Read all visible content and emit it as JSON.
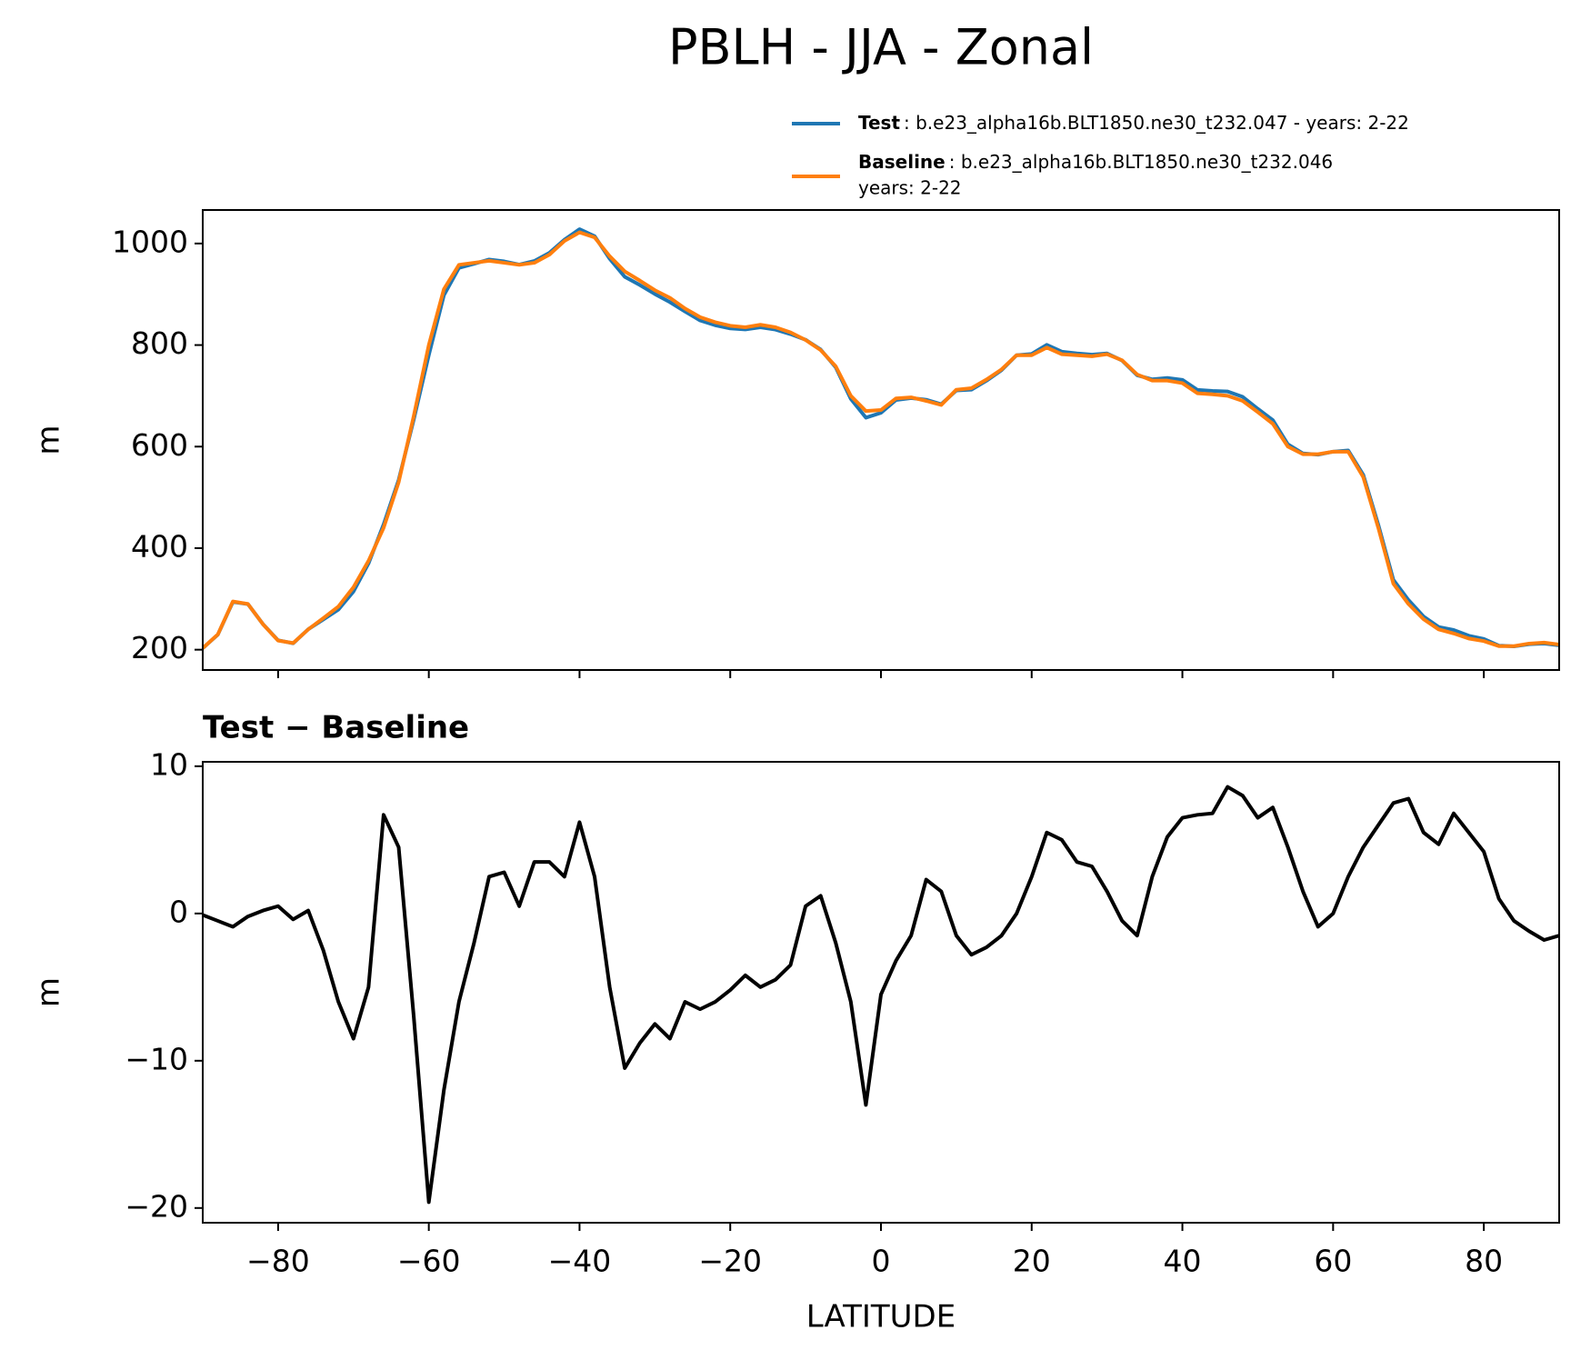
{
  "chart_data": [
    {
      "type": "line",
      "title": "PBLH - JJA - Zonal",
      "ylabel": "m",
      "x": [
        -90,
        -88,
        -86,
        -84,
        -82,
        -80,
        -78,
        -76,
        -74,
        -72,
        -70,
        -68,
        -66,
        -64,
        -62,
        -60,
        -58,
        -56,
        -54,
        -52,
        -50,
        -48,
        -46,
        -44,
        -42,
        -40,
        -38,
        -36,
        -34,
        -32,
        -30,
        -28,
        -26,
        -24,
        -22,
        -20,
        -18,
        -16,
        -14,
        -12,
        -10,
        -8,
        -6,
        -4,
        -2,
        0,
        2,
        4,
        6,
        8,
        10,
        12,
        14,
        16,
        18,
        20,
        22,
        24,
        26,
        28,
        30,
        32,
        34,
        36,
        38,
        40,
        42,
        44,
        46,
        48,
        50,
        52,
        54,
        56,
        58,
        60,
        62,
        64,
        66,
        68,
        70,
        72,
        74,
        76,
        78,
        80,
        82,
        84,
        86,
        88,
        90
      ],
      "series": [
        {
          "name": "Test",
          "description": [
            ": b.e23_alpha16b.BLT1850.ne30_t232.047 - years: 2-22"
          ],
          "color": "#1f77b4",
          "values": [
            202.9,
            229.5,
            294.1,
            289.8,
            250.2,
            218.5,
            212.6,
            240.2,
            259.5,
            279,
            314.5,
            370,
            446.7,
            534.5,
            653,
            780.4,
            898,
            952,
            960,
            968.5,
            964.8,
            958.5,
            965.5,
            981.5,
            1007.5,
            1028.2,
            1014.5,
            970,
            934.5,
            918.2,
            900.5,
            884.5,
            866,
            848.5,
            839,
            832.8,
            830.8,
            835,
            830.5,
            821.5,
            810.5,
            791.2,
            756,
            694,
            657,
            666.5,
            691.8,
            695.5,
            692.3,
            683.5,
            710.5,
            712.2,
            729.7,
            750.5,
            780,
            782.5,
            800.5,
            787,
            783.5,
            781.2,
            783.5,
            769.5,
            740.5,
            732.5,
            735.2,
            731.5,
            711.7,
            709.8,
            708.6,
            698,
            674.5,
            652.2,
            604.5,
            586.5,
            584.1,
            590,
            592.5,
            544.5,
            446,
            337.5,
            297.8,
            265.5,
            244.7,
            238.8,
            227.5,
            221.2,
            208,
            206.5,
            210.8,
            212.2,
            208.5
          ]
        },
        {
          "name": "Baseline",
          "description": [
            ": b.e23_alpha16b.BLT1850.ne30_t232.046",
            "years: 2-22"
          ],
          "color": "#ff7f0e",
          "values": [
            203,
            230,
            295,
            290,
            250,
            218,
            213,
            240,
            262,
            285,
            323,
            375,
            440,
            530,
            660,
            800,
            910,
            958,
            962,
            966,
            962,
            958,
            962,
            978,
            1005,
            1022,
            1012,
            975,
            945,
            927,
            908,
            893,
            872,
            855,
            845,
            838,
            835,
            840,
            835,
            825,
            810,
            790,
            758,
            700,
            670,
            672,
            695,
            697,
            690,
            682,
            712,
            715,
            732,
            752,
            780,
            780,
            795,
            782,
            780,
            778,
            782,
            770,
            742,
            730,
            730,
            725,
            705,
            703,
            700,
            690,
            668,
            645,
            600,
            585,
            585,
            590,
            590,
            540,
            440,
            330,
            290,
            260,
            240,
            232,
            222,
            217,
            207,
            207,
            212,
            214,
            210
          ]
        }
      ],
      "xlim": [
        -90,
        90
      ],
      "xticks": [
        -80,
        -60,
        -40,
        -20,
        0,
        20,
        40,
        60,
        80
      ],
      "ylim": [
        160,
        1066
      ],
      "yticks": [
        200,
        400,
        600,
        800,
        1000
      ]
    },
    {
      "type": "line",
      "title": "Test − Baseline",
      "ylabel": "m",
      "xlabel": "LATITUDE",
      "x": [
        -90,
        -88,
        -86,
        -84,
        -82,
        -80,
        -78,
        -76,
        -74,
        -72,
        -70,
        -68,
        -66,
        -64,
        -62,
        -60,
        -58,
        -56,
        -54,
        -52,
        -50,
        -48,
        -46,
        -44,
        -42,
        -40,
        -38,
        -36,
        -34,
        -32,
        -30,
        -28,
        -26,
        -24,
        -22,
        -20,
        -18,
        -16,
        -14,
        -12,
        -10,
        -8,
        -6,
        -4,
        -2,
        0,
        2,
        4,
        6,
        8,
        10,
        12,
        14,
        16,
        18,
        20,
        22,
        24,
        26,
        28,
        30,
        32,
        34,
        36,
        38,
        40,
        42,
        44,
        46,
        48,
        50,
        52,
        54,
        56,
        58,
        60,
        62,
        64,
        66,
        68,
        70,
        72,
        74,
        76,
        78,
        80,
        82,
        84,
        86,
        88,
        90
      ],
      "series": [
        {
          "color": "#000000",
          "values": [
            -0.1,
            -0.5,
            -0.9,
            -0.2,
            0.2,
            0.5,
            -0.4,
            0.2,
            -2.5,
            -6,
            -8.5,
            -5,
            6.7,
            4.5,
            -7,
            -19.6,
            -12,
            -6,
            -2,
            2.5,
            2.8,
            0.5,
            3.5,
            3.5,
            2.5,
            6.2,
            2.5,
            -5,
            -10.5,
            -8.8,
            -7.5,
            -8.5,
            -6,
            -6.5,
            -6,
            -5.2,
            -4.2,
            -5,
            -4.5,
            -3.5,
            0.5,
            1.2,
            -2,
            -6,
            -13,
            -5.5,
            -3.2,
            -1.5,
            2.3,
            1.5,
            -1.5,
            -2.8,
            -2.3,
            -1.5,
            0,
            2.5,
            5.5,
            5,
            3.5,
            3.2,
            1.5,
            -0.5,
            -1.5,
            2.5,
            5.2,
            6.5,
            6.7,
            6.8,
            8.6,
            8,
            6.5,
            7.2,
            4.5,
            1.5,
            -0.9,
            0,
            2.5,
            4.5,
            6,
            7.5,
            7.8,
            5.5,
            4.7,
            6.8,
            5.5,
            4.2,
            1,
            -0.5,
            -1.2,
            -1.8,
            -1.5
          ]
        }
      ],
      "xlim": [
        -90,
        90
      ],
      "xticks": [
        {
          "value": -80,
          "label": "−80"
        },
        {
          "value": -60,
          "label": "−60"
        },
        {
          "value": -40,
          "label": "−40"
        },
        {
          "value": -20,
          "label": "−20"
        },
        0,
        20,
        40,
        60,
        80
      ],
      "ylim": [
        -21,
        10.3
      ],
      "yticks": [
        {
          "value": -20,
          "label": "−20"
        },
        {
          "value": -10,
          "label": "−10"
        },
        0,
        10
      ]
    }
  ]
}
